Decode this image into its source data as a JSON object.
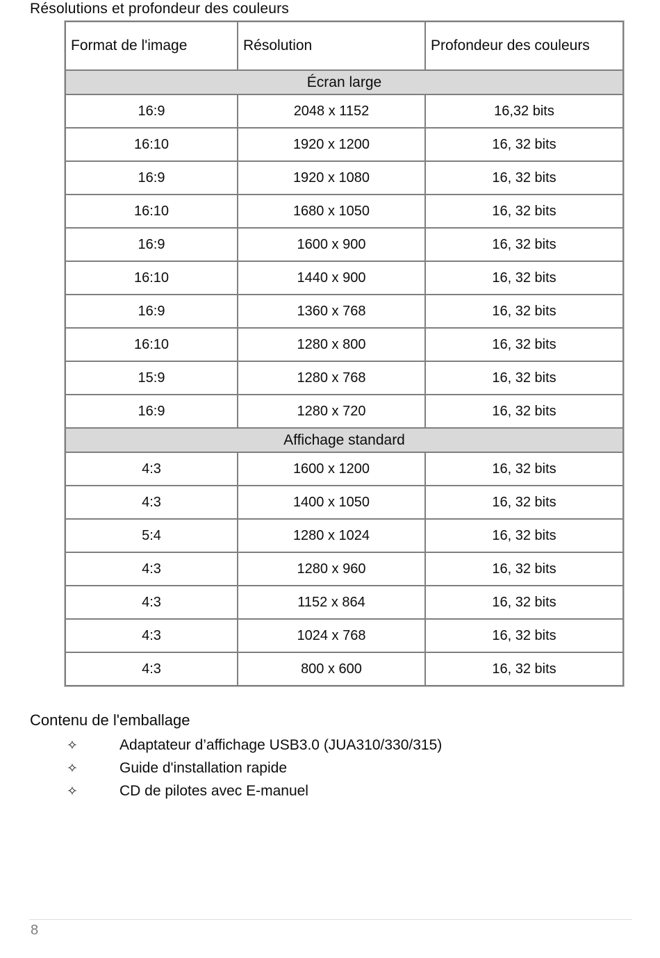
{
  "page": {
    "title": "Résolutions et profondeur des couleurs",
    "page_number": "8"
  },
  "table": {
    "headers": [
      "Format de l'image",
      "Résolution",
      "Profondeur des couleurs"
    ],
    "sections": [
      {
        "label": "Écran large",
        "rows": [
          [
            "16:9",
            "2048 x 1152",
            "16,32 bits"
          ],
          [
            "16:10",
            "1920 x 1200",
            "16, 32 bits"
          ],
          [
            "16:9",
            "1920 x 1080",
            "16, 32 bits"
          ],
          [
            "16:10",
            "1680 x 1050",
            "16, 32 bits"
          ],
          [
            "16:9",
            "1600 x 900",
            "16, 32 bits"
          ],
          [
            "16:10",
            "1440 x 900",
            "16, 32 bits"
          ],
          [
            "16:9",
            "1360 x 768",
            "16, 32 bits"
          ],
          [
            "16:10",
            "1280 x 800",
            "16, 32 bits"
          ],
          [
            "15:9",
            "1280 x 768",
            "16, 32 bits"
          ],
          [
            "16:9",
            "1280 x 720",
            "16, 32 bits"
          ]
        ]
      },
      {
        "label": "Affichage standard",
        "rows": [
          [
            "4:3",
            "1600 x 1200",
            "16, 32 bits"
          ],
          [
            "4:3",
            "1400 x 1050",
            "16, 32 bits"
          ],
          [
            "5:4",
            "1280 x 1024",
            "16, 32 bits"
          ],
          [
            "4:3",
            "1280 x 960",
            "16, 32 bits"
          ],
          [
            "4:3",
            "1152 x 864",
            "16, 32 bits"
          ],
          [
            "4:3",
            "1024 x 768",
            "16, 32 bits"
          ],
          [
            "4:3",
            "800 x 600",
            "16, 32 bits"
          ]
        ]
      }
    ]
  },
  "package": {
    "heading": "Contenu de l'emballage",
    "bullet_icon": "✧",
    "items": [
      "Adaptateur d’affichage USB3.0 (JUA310/330/315)",
      "Guide d'installation rapide",
      "CD de pilotes avec E-manuel"
    ]
  },
  "colors": {
    "section_row_bg": "#d9d9d9",
    "table_border": "#7f7f7f",
    "footer_rule": "#dedede",
    "page_number_text": "#7c7c7c"
  }
}
